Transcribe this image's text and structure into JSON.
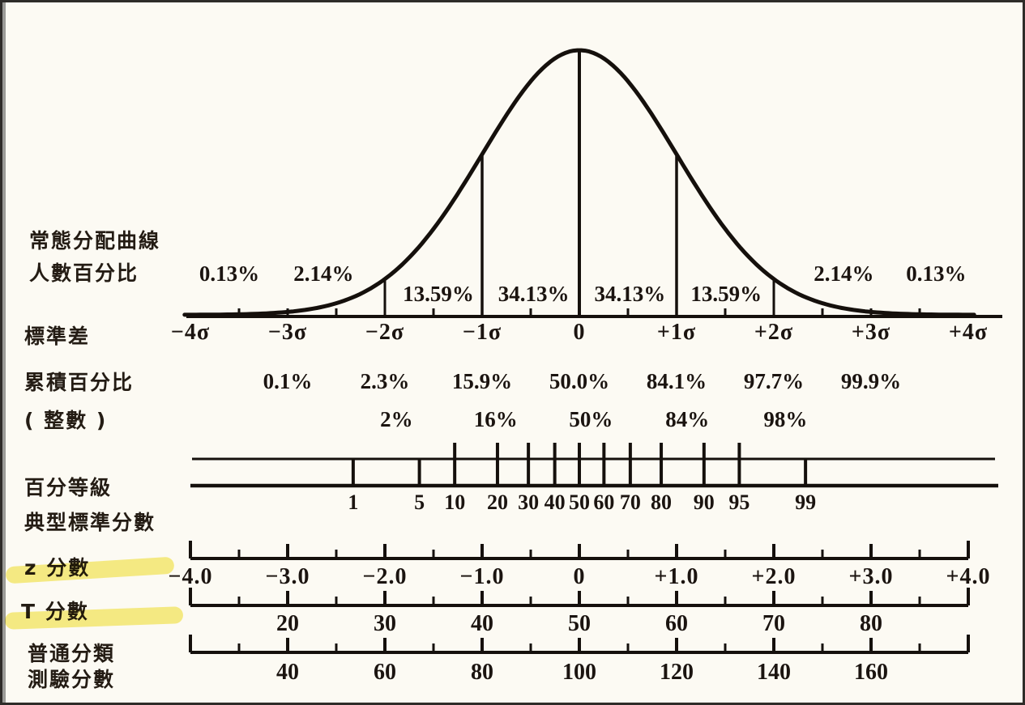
{
  "colors": {
    "ink": "#15100c",
    "paper": "#fcfaf3",
    "highlight": "#f2e33e"
  },
  "figure": {
    "row_labels": {
      "curve_line1": "常態分配曲線",
      "curve_line2": "人數百分比",
      "std_dev": "標準差",
      "cumulative": "累積百分比",
      "cumulative_int": "( 整數 )",
      "percentile": "百分等級",
      "typical_standard": "典型標準分數",
      "z_score": "z 分數",
      "t_score": "T 分數",
      "test_line1": "普通分類",
      "test_line2": "測驗分數"
    }
  },
  "chart_data": {
    "type": "line",
    "title": "常態分配曲線 (normal distribution curve) with 人數百分比 segment percentages and aligned score scales",
    "curve": {
      "distribution": "normal-gaussian",
      "mean_z": 0,
      "sigma_z": 1,
      "z_range": [
        -4,
        4
      ],
      "vertical_reference_lines_at_z": [
        -2,
        -1,
        0,
        1,
        2
      ]
    },
    "segment_percentages_outer": [
      {
        "label": "0.13%",
        "z": -3.6
      },
      {
        "label": "2.14%",
        "z": -2.63
      },
      {
        "label": "2.14%",
        "z": 2.72
      },
      {
        "label": "0.13%",
        "z": 3.67
      }
    ],
    "segment_percentages_inner": [
      {
        "label": "13.59%",
        "z": -1.45
      },
      {
        "label": "34.13%",
        "z": -0.47
      },
      {
        "label": "34.13%",
        "z": 0.52
      },
      {
        "label": "13.59%",
        "z": 1.51
      }
    ],
    "sigma_axis": {
      "label": "標準差",
      "ticks": [
        {
          "label": "−4σ",
          "z": -4
        },
        {
          "label": "−3σ",
          "z": -3
        },
        {
          "label": "−2σ",
          "z": -2
        },
        {
          "label": "−1σ",
          "z": -1
        },
        {
          "label": "0",
          "z": 0
        },
        {
          "label": "+1σ",
          "z": 1
        },
        {
          "label": "+2σ",
          "z": 2
        },
        {
          "label": "+3σ",
          "z": 3
        },
        {
          "label": "+4σ",
          "z": 4
        }
      ],
      "minor_tick_z": [
        -3.5,
        -3,
        -2.5,
        -1.5,
        -0.5,
        0.5,
        1.5,
        2.5,
        3,
        3.5
      ]
    },
    "cumulative_percent": [
      {
        "label": "0.1%",
        "z": -3
      },
      {
        "label": "2.3%",
        "z": -2
      },
      {
        "label": "15.9%",
        "z": -1
      },
      {
        "label": "50.0%",
        "z": 0
      },
      {
        "label": "84.1%",
        "z": 1
      },
      {
        "label": "97.7%",
        "z": 2
      },
      {
        "label": "99.9%",
        "z": 3
      }
    ],
    "cumulative_percent_rounded": [
      {
        "label": "2%",
        "z": -1.88
      },
      {
        "label": "16%",
        "z": -0.86
      },
      {
        "label": "50%",
        "z": 0.12
      },
      {
        "label": "84%",
        "z": 1.11
      },
      {
        "label": "98%",
        "z": 2.12
      }
    ],
    "percentile_scale": {
      "label": "百分等級",
      "ticks": [
        {
          "label": "1",
          "z": -2.326,
          "tall": false
        },
        {
          "label": "5",
          "z": -1.645,
          "tall": false
        },
        {
          "label": "10",
          "z": -1.282,
          "tall": true
        },
        {
          "label": "20",
          "z": -0.842,
          "tall": true
        },
        {
          "label": "30",
          "z": -0.524,
          "tall": true
        },
        {
          "label": "40",
          "z": -0.253,
          "tall": true
        },
        {
          "label": "50",
          "z": 0,
          "tall": true
        },
        {
          "label": "60",
          "z": 0.253,
          "tall": true
        },
        {
          "label": "70",
          "z": 0.524,
          "tall": true
        },
        {
          "label": "80",
          "z": 0.842,
          "tall": true
        },
        {
          "label": "90",
          "z": 1.282,
          "tall": true
        },
        {
          "label": "95",
          "z": 1.645,
          "tall": true
        },
        {
          "label": "99",
          "z": 2.326,
          "tall": false
        }
      ]
    },
    "z_scale": {
      "label": "z 分數",
      "highlighted": true,
      "ticks": [
        {
          "label": "−4.0",
          "z": -4
        },
        {
          "label": "−3.0",
          "z": -3
        },
        {
          "label": "−2.0",
          "z": -2
        },
        {
          "label": "−1.0",
          "z": -1
        },
        {
          "label": "0",
          "z": 0
        },
        {
          "label": "+1.0",
          "z": 1
        },
        {
          "label": "+2.0",
          "z": 2
        },
        {
          "label": "+3.0",
          "z": 3
        },
        {
          "label": "+4.0",
          "z": 4
        }
      ]
    },
    "t_scale": {
      "label": "T 分數",
      "highlighted": true,
      "ticks": [
        {
          "label": "20",
          "z": -3
        },
        {
          "label": "30",
          "z": -2
        },
        {
          "label": "40",
          "z": -1
        },
        {
          "label": "50",
          "z": 0
        },
        {
          "label": "60",
          "z": 1
        },
        {
          "label": "70",
          "z": 2
        },
        {
          "label": "80",
          "z": 3
        }
      ]
    },
    "test_scale": {
      "label": "普通分類測驗分數",
      "ticks": [
        {
          "label": "40",
          "z": -3
        },
        {
          "label": "60",
          "z": -2
        },
        {
          "label": "80",
          "z": -1
        },
        {
          "label": "100",
          "z": 0
        },
        {
          "label": "120",
          "z": 1
        },
        {
          "label": "140",
          "z": 2
        },
        {
          "label": "160",
          "z": 3
        }
      ]
    },
    "layout_hints": {
      "grid": false,
      "legend": false,
      "scales_share_x_alignment": true
    }
  }
}
